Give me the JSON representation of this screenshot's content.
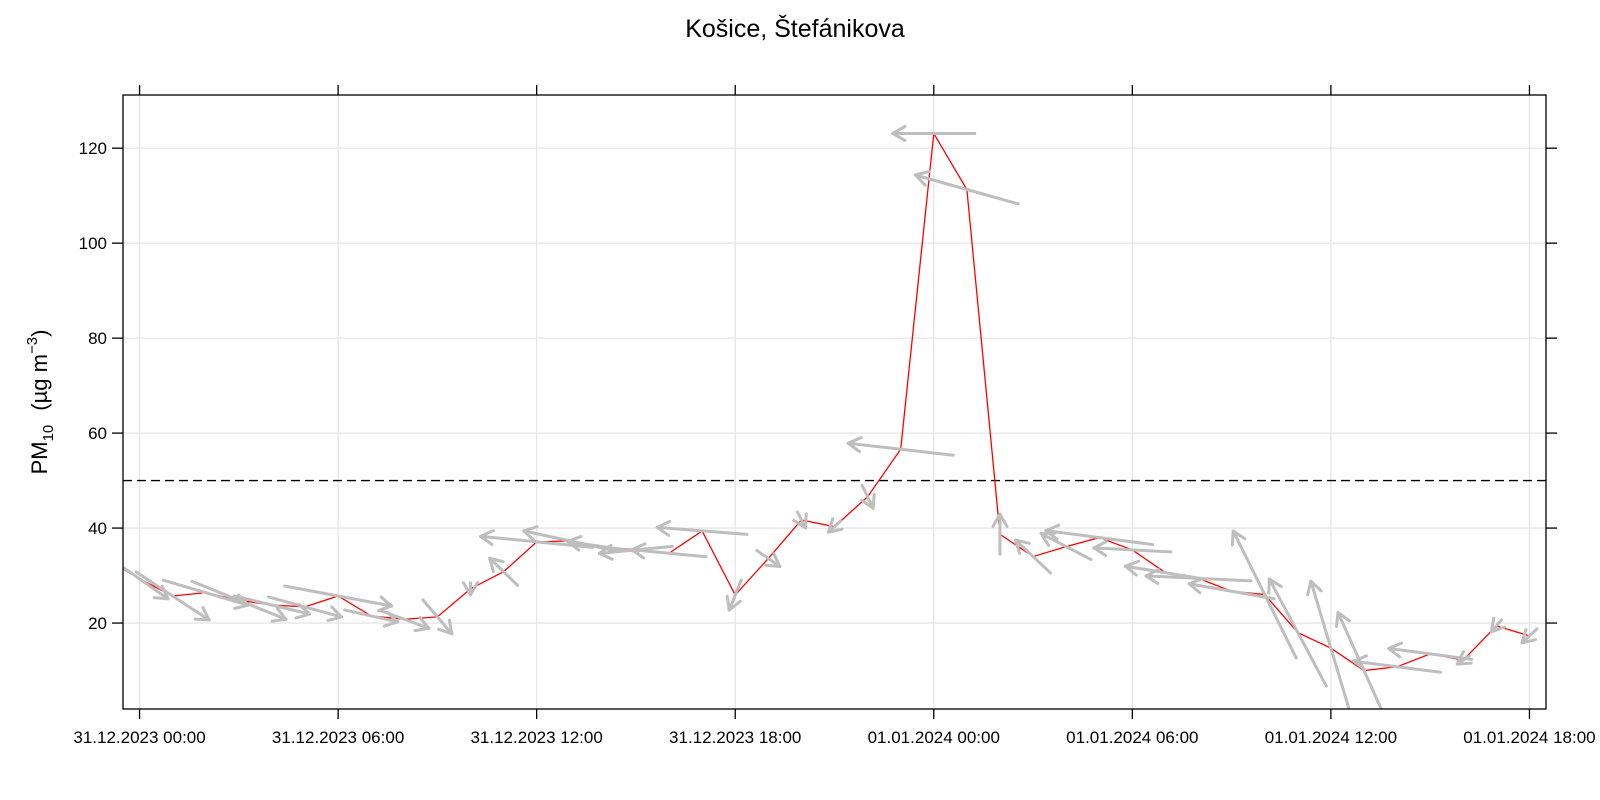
{
  "chart_data": {
    "type": "line",
    "title": "Košice, Štefánikova",
    "ylabel": {
      "main": "PM",
      "sub": "10",
      "units_pre": "(µg m",
      "units_sup": "−3",
      "units_post": ")"
    },
    "xlabel": "",
    "x_unit": "hours since 31.12.2023 00:00",
    "xlim": [
      -0.5,
      42.5
    ],
    "ylim": [
      1.9,
      131.2
    ],
    "grid": true,
    "x_ticks": [
      {
        "hour": 0,
        "label": "31.12.2023 00:00"
      },
      {
        "hour": 6,
        "label": "31.12.2023 06:00"
      },
      {
        "hour": 12,
        "label": "31.12.2023 12:00"
      },
      {
        "hour": 18,
        "label": "31.12.2023 18:00"
      },
      {
        "hour": 24,
        "label": "01.01.2024 00:00"
      },
      {
        "hour": 30,
        "label": "01.01.2024 06:00"
      },
      {
        "hour": 36,
        "label": "01.01.2024 12:00"
      },
      {
        "hour": 42,
        "label": "01.01.2024 18:00"
      }
    ],
    "y_ticks": [
      20,
      40,
      60,
      80,
      100,
      120
    ],
    "reference_line": {
      "value": 50,
      "style": "dashed",
      "color": "#000000"
    },
    "series": [
      {
        "name": "PM10",
        "color": "#ff0000",
        "hours": [
          -1,
          0,
          1,
          2,
          3,
          4,
          5,
          6,
          7,
          8,
          9,
          10,
          11,
          12,
          13,
          14,
          15,
          16,
          17,
          18,
          19,
          20,
          21,
          22,
          23,
          24,
          25,
          26,
          27,
          28,
          29,
          30,
          31,
          32,
          33,
          34,
          35,
          36,
          37,
          38,
          39,
          40,
          41,
          42
        ],
        "values": [
          33.5,
          29.3,
          25.7,
          26.4,
          24.8,
          23.8,
          23.4,
          25.7,
          21.5,
          20.8,
          21.3,
          27.2,
          30.8,
          37.1,
          37.3,
          36.1,
          35.4,
          34.7,
          39.4,
          25.9,
          33.6,
          41.7,
          40.3,
          46.6,
          56.6,
          123.1,
          111.3,
          38.7,
          34.0,
          36.1,
          38.0,
          35.4,
          30.6,
          29.4,
          26.7,
          26.0,
          18.0,
          14.7,
          10.0,
          10.8,
          13.5,
          12.2,
          19.4,
          17.3
        ]
      }
    ],
    "wind_vectors": {
      "color": "#bebebe",
      "unit": "m/s",
      "hours": [
        0,
        1,
        2,
        3,
        4,
        5,
        6,
        7,
        8,
        9,
        10,
        11,
        12,
        13,
        14,
        15,
        16,
        17,
        18,
        19,
        20,
        21,
        22,
        23,
        24,
        25,
        26,
        27,
        28,
        29,
        30,
        31,
        32,
        33,
        34,
        35,
        36,
        37,
        38,
        39,
        40,
        41,
        42
      ],
      "u": [
        2.85,
        3.65,
        4.25,
        4.7,
        3.75,
        3.65,
        5.35,
        2.65,
        2.45,
        1.45,
        0,
        -1.4,
        -5.6,
        -4.6,
        -3.5,
        -3.65,
        -3.7,
        -4.5,
        -0.6,
        1.15,
        0.4,
        -0.6,
        0.55,
        -5.25,
        -4.1,
        -5.15,
        0,
        -1.75,
        -2.5,
        -5.35,
        -3.85,
        -4.0,
        -5.25,
        -4.25,
        -3.15,
        -2.85,
        -2.0,
        -2.6,
        -4.35,
        -4.15,
        -0.6,
        -0.5,
        -0.75
      ],
      "v": [
        -2.0,
        -2.4,
        -1.25,
        -1.9,
        -0.9,
        -1.0,
        -1.0,
        -0.6,
        -0.9,
        -1.7,
        -0.6,
        1.35,
        0.55,
        1.0,
        0.5,
        -0.35,
        0.35,
        0.35,
        -1.5,
        -0.8,
        -0.8,
        -0.55,
        -1.15,
        0.6,
        0,
        1.45,
        2.0,
        1.65,
        1.3,
        0.7,
        0.2,
        0.65,
        0.25,
        0.75,
        6.35,
        5.35,
        6.7,
        5.8,
        0.55,
        0.55,
        -0.4,
        -0.6,
        -0.7
      ]
    }
  }
}
